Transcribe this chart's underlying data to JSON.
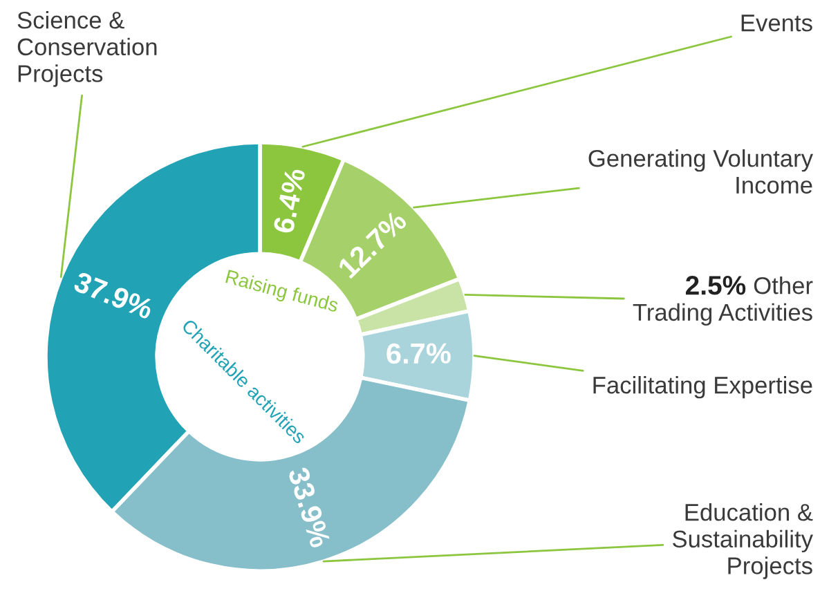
{
  "chart_data": {
    "type": "donut",
    "categories": [
      "Events",
      "Generating Voluntary\nIncome",
      "Other\nTrading Activities",
      "Facilitating Expertise",
      "Education &\nSustainability\nProjects",
      "Science &\nConservation\nProjects"
    ],
    "values": [
      6.4,
      12.7,
      2.5,
      6.7,
      33.9,
      37.9
    ],
    "value_labels": [
      "6.4%",
      "12.7%",
      "2.5%",
      "6.7%",
      "33.9%",
      "37.9%"
    ],
    "colors": [
      "#8cc63f",
      "#a6d06a",
      "#c9e3a6",
      "#a9d4dc",
      "#86bfc9",
      "#21a3b5"
    ],
    "annotations": [
      "Raising funds",
      "Charitable activities"
    ],
    "legend": false
  }
}
